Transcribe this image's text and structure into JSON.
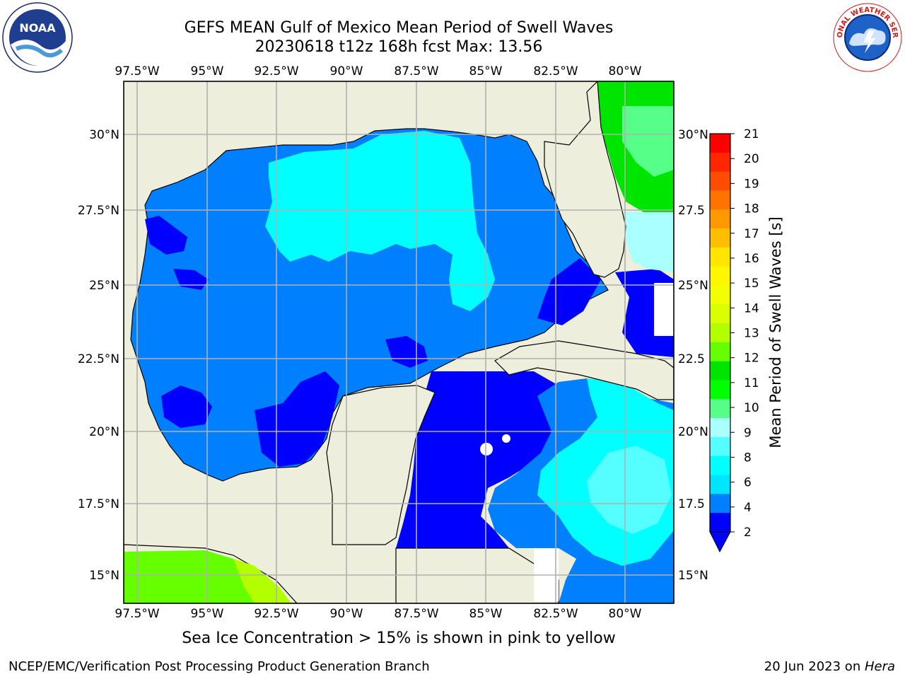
{
  "header": {
    "title_line1": "GEFS MEAN Gulf of Mexico Mean Period of Swell Waves",
    "title_line2": "20230618 t12z 168h fcst   Max: 13.56"
  },
  "logos": {
    "left": {
      "icon": "noaa-logo",
      "text": "NOAA",
      "ring_text": "NATIONAL OCEANIC AND ATMOSPHERIC ADMINISTRATION · U.S. DEPARTMENT OF COMMERCE"
    },
    "right": {
      "icon": "nws-logo",
      "ring_text": "NATIONAL WEATHER SERVICE"
    }
  },
  "map": {
    "lon_ticks": [
      "97.5°W",
      "95°W",
      "92.5°W",
      "90°W",
      "87.5°W",
      "85°W",
      "82.5°W",
      "80°W"
    ],
    "lat_ticks": [
      "30°N",
      "27.5°N",
      "25°N",
      "22.5°N",
      "20°N",
      "17.5°N",
      "15°N"
    ],
    "lat_ticks_right": [
      "30°N",
      "27.5",
      "25°N",
      "22.5",
      "20°N",
      "17.5",
      "15°N"
    ],
    "colors": {
      "land": "#eeeedd",
      "ocean_blue": "#0080ff",
      "deep_blue": "#0000ff",
      "cyan": "#00ffff",
      "grid": "#b0b0b0"
    }
  },
  "colorbar": {
    "label": "Mean Period of Swell Waves [s]",
    "ticks": [
      "21",
      "20",
      "19",
      "18",
      "17",
      "16",
      "15",
      "14",
      "13",
      "12",
      "11",
      "10",
      "9",
      "8",
      "6",
      "4",
      "2"
    ],
    "colors": [
      "#ff0000",
      "#ff2600",
      "#ff4c00",
      "#ff7300",
      "#ff9900",
      "#ffbf00",
      "#ffe500",
      "#fff700",
      "#f2ff00",
      "#d9ff00",
      "#b3ff00",
      "#66ff00",
      "#00e500",
      "#00ff00",
      "#55ff88",
      "#aaffff",
      "#55ffff",
      "#00ffff",
      "#00e5ff",
      "#0080ff",
      "#0000ff"
    ]
  },
  "bottom_note": "Sea Ice Concentration > 15% is shown in pink to yellow",
  "footer": {
    "left": "NCEP/EMC/Verification Post Processing Product Generation Branch",
    "right_prefix": "20 Jun 2023 on ",
    "right_host": "Hera"
  }
}
